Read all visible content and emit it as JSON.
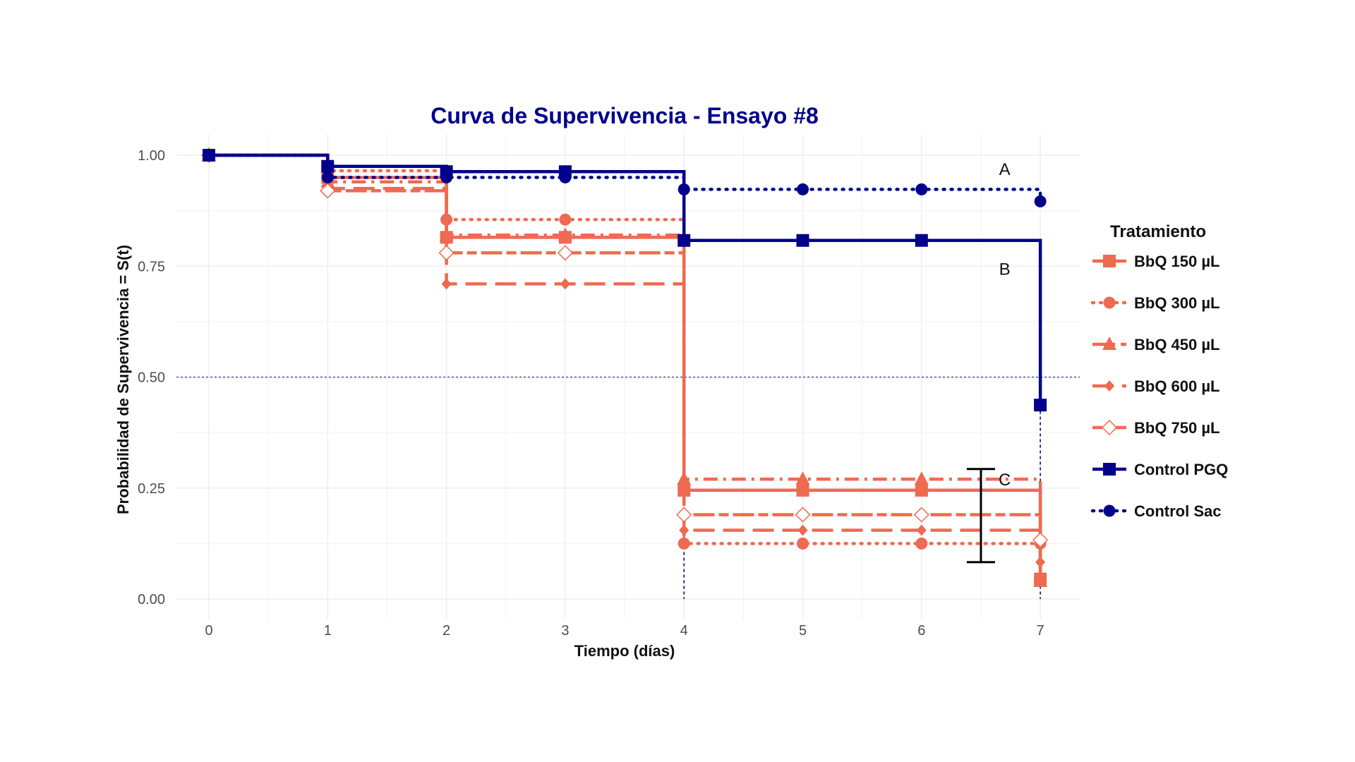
{
  "chart_data": {
    "type": "line",
    "subtype": "step",
    "title": "Curva de Supervivencia - Ensayo #8",
    "xlabel": "Tiempo (días)",
    "ylabel": "Probabilidad de Supervivencia = S(t)",
    "xlim": [
      0,
      7
    ],
    "ylim": [
      0,
      1
    ],
    "x_ticks": [
      "0",
      "1",
      "2",
      "3",
      "4",
      "5",
      "6",
      "7"
    ],
    "y_ticks": [
      "0.00",
      "0.25",
      "0.50",
      "0.75",
      "1.00"
    ],
    "grid": true,
    "reference_line": {
      "y": 0.5
    },
    "median_lines_x": [
      4,
      7
    ],
    "legend": {
      "title": "Tratamiento",
      "placement": "right"
    },
    "colors": {
      "treatment": "#EE6A50",
      "control": "#00008B",
      "title": "#00008B"
    },
    "annotations": [
      {
        "text": "A",
        "x": 6.7,
        "y": 0.97
      },
      {
        "text": "B",
        "x": 6.7,
        "y": 0.745
      },
      {
        "text": "C",
        "x": 6.7,
        "y": 0.27
      }
    ],
    "error_bar": {
      "x": 6.5,
      "ymin": 0.083,
      "ymax": 0.293
    },
    "series": [
      {
        "name": "BbQ 150 µL",
        "color": "#EE6A50",
        "line": "solid",
        "marker": "square",
        "x": [
          0,
          1,
          2,
          3,
          4,
          5,
          6,
          7
        ],
        "values": [
          1.0,
          0.95,
          0.815,
          0.815,
          0.245,
          0.245,
          0.245,
          0.045
        ]
      },
      {
        "name": "BbQ 300 µL",
        "color": "#EE6A50",
        "line": "dotted",
        "marker": "circle",
        "x": [
          0,
          1,
          2,
          3,
          4,
          5,
          6,
          7
        ],
        "values": [
          1.0,
          0.965,
          0.855,
          0.855,
          0.125,
          0.125,
          0.125,
          0.125
        ]
      },
      {
        "name": "BbQ 450 µL",
        "color": "#EE6A50",
        "line": "dashdot",
        "marker": "triangle",
        "x": [
          0,
          1,
          2,
          3,
          4,
          5,
          6,
          7
        ],
        "values": [
          1.0,
          0.94,
          0.82,
          0.82,
          0.27,
          0.27,
          0.27,
          0.04
        ]
      },
      {
        "name": "BbQ 600 µL",
        "color": "#EE6A50",
        "line": "longdash",
        "marker": "diamond",
        "x": [
          0,
          1,
          2,
          3,
          4,
          5,
          6,
          7
        ],
        "values": [
          1.0,
          0.925,
          0.71,
          0.71,
          0.155,
          0.155,
          0.155,
          0.083
        ]
      },
      {
        "name": "BbQ 750 µL",
        "color": "#EE6A50",
        "line": "twodash",
        "marker": "diamond-open",
        "x": [
          0,
          1,
          2,
          3,
          4,
          5,
          6,
          7
        ],
        "values": [
          1.0,
          0.92,
          0.78,
          0.78,
          0.19,
          0.19,
          0.19,
          0.133
        ]
      },
      {
        "name": "Control PGQ",
        "color": "#00008B",
        "line": "solid",
        "marker": "square",
        "x": [
          0,
          1,
          2,
          3,
          4,
          5,
          6,
          7
        ],
        "values": [
          1.0,
          0.975,
          0.963,
          0.963,
          0.808,
          0.808,
          0.808,
          0.437
        ]
      },
      {
        "name": "Control Sac",
        "color": "#00008B",
        "line": "dotted",
        "marker": "circle",
        "x": [
          0,
          1,
          2,
          3,
          4,
          5,
          6,
          7
        ],
        "values": [
          1.0,
          0.95,
          0.95,
          0.95,
          0.923,
          0.923,
          0.923,
          0.896
        ]
      }
    ]
  }
}
